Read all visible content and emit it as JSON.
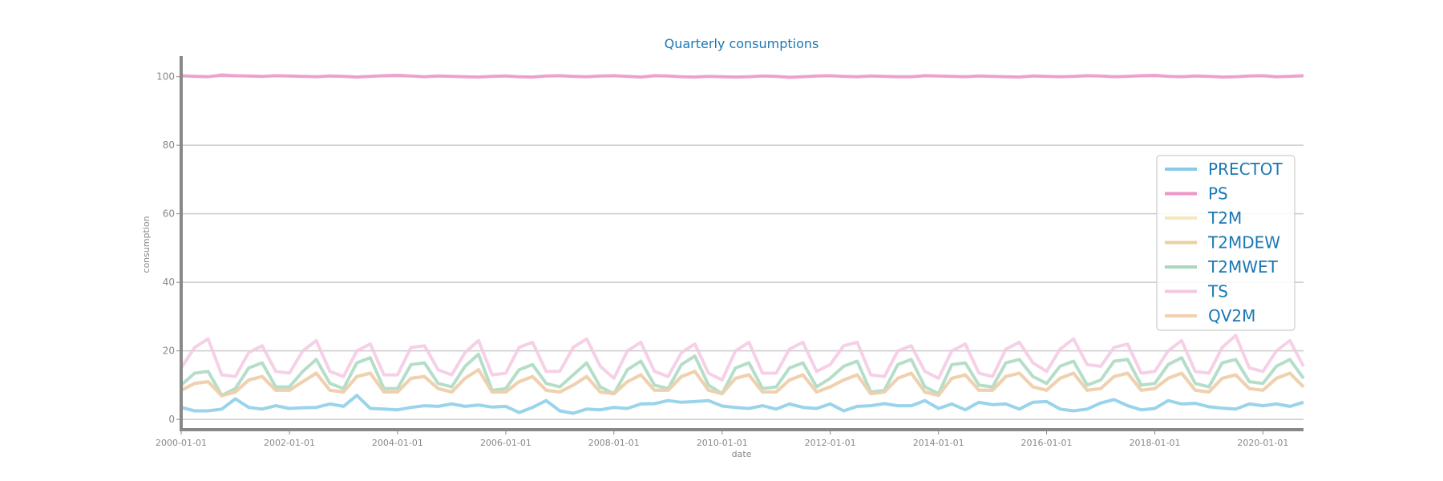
{
  "chart_data": {
    "type": "line",
    "title": "Quarterly consumptions",
    "xlabel": "date",
    "ylabel": "consumption",
    "ylim": [
      -3,
      106
    ],
    "xlim": [
      "2000-01-01",
      "2020-10-01"
    ],
    "grid": "horizontal",
    "legend_position": "right",
    "yticks": [
      "0",
      "20",
      "40",
      "60",
      "80",
      "100"
    ],
    "xticks": [
      "2000-01-01",
      "2002-01-01",
      "2004-01-01",
      "2006-01-01",
      "2008-01-01",
      "2010-01-01",
      "2012-01-01",
      "2014-01-01",
      "2016-01-01",
      "2018-01-01",
      "2020-01-01"
    ],
    "x": [
      "2000-01-01",
      "2000-04-01",
      "2000-07-01",
      "2000-10-01",
      "2001-01-01",
      "2001-04-01",
      "2001-07-01",
      "2001-10-01",
      "2002-01-01",
      "2002-04-01",
      "2002-07-01",
      "2002-10-01",
      "2003-01-01",
      "2003-04-01",
      "2003-07-01",
      "2003-10-01",
      "2004-01-01",
      "2004-04-01",
      "2004-07-01",
      "2004-10-01",
      "2005-01-01",
      "2005-04-01",
      "2005-07-01",
      "2005-10-01",
      "2006-01-01",
      "2006-04-01",
      "2006-07-01",
      "2006-10-01",
      "2007-01-01",
      "2007-04-01",
      "2007-07-01",
      "2007-10-01",
      "2008-01-01",
      "2008-04-01",
      "2008-07-01",
      "2008-10-01",
      "2009-01-01",
      "2009-04-01",
      "2009-07-01",
      "2009-10-01",
      "2010-01-01",
      "2010-04-01",
      "2010-07-01",
      "2010-10-01",
      "2011-01-01",
      "2011-04-01",
      "2011-07-01",
      "2011-10-01",
      "2012-01-01",
      "2012-04-01",
      "2012-07-01",
      "2012-10-01",
      "2013-01-01",
      "2013-04-01",
      "2013-07-01",
      "2013-10-01",
      "2014-01-01",
      "2014-04-01",
      "2014-07-01",
      "2014-10-01",
      "2015-01-01",
      "2015-04-01",
      "2015-07-01",
      "2015-10-01",
      "2016-01-01",
      "2016-04-01",
      "2016-07-01",
      "2016-10-01",
      "2017-01-01",
      "2017-04-01",
      "2017-07-01",
      "2017-10-01",
      "2018-01-01",
      "2018-04-01",
      "2018-07-01",
      "2018-10-01",
      "2019-01-01",
      "2019-04-01",
      "2019-07-01",
      "2019-10-01",
      "2020-01-01",
      "2020-04-01",
      "2020-07-01",
      "2020-10-01"
    ],
    "series": [
      {
        "name": "PRECTOT",
        "color": "#87cce6",
        "values": [
          3.5,
          2.5,
          2.5,
          3.0,
          6.0,
          3.5,
          3.0,
          4.0,
          3.2,
          3.4,
          3.5,
          4.5,
          3.8,
          7.0,
          3.2,
          3.0,
          2.8,
          3.5,
          4.0,
          3.8,
          4.5,
          3.8,
          4.2,
          3.6,
          3.8,
          2.0,
          3.5,
          5.5,
          2.5,
          1.8,
          3.0,
          2.8,
          3.5,
          3.2,
          4.5,
          4.6,
          5.5,
          5.0,
          5.2,
          5.5,
          3.9,
          3.5,
          3.2,
          4.0,
          3.0,
          4.5,
          3.5,
          3.2,
          4.5,
          2.5,
          3.8,
          4.0,
          4.6,
          4.0,
          4.0,
          5.5,
          3.2,
          4.5,
          2.8,
          5.0,
          4.3,
          4.5,
          3.0,
          5.0,
          5.2,
          3.0,
          2.5,
          3.0,
          4.8,
          5.8,
          4.0,
          2.8,
          3.2,
          5.5,
          4.5,
          4.7,
          3.7,
          3.3,
          3.0,
          4.5,
          4.0,
          4.5,
          3.8,
          5.0
        ]
      },
      {
        "name": "PS",
        "color": "#ec96c8",
        "values": [
          100.3,
          100.1,
          100.0,
          100.5,
          100.3,
          100.2,
          100.1,
          100.3,
          100.2,
          100.1,
          100.0,
          100.2,
          100.1,
          99.9,
          100.1,
          100.3,
          100.4,
          100.2,
          100.0,
          100.2,
          100.1,
          100.0,
          99.9,
          100.1,
          100.2,
          100.0,
          99.9,
          100.2,
          100.3,
          100.1,
          100.0,
          100.2,
          100.3,
          100.1,
          99.9,
          100.3,
          100.2,
          100.0,
          99.9,
          100.1,
          100.0,
          99.9,
          100.0,
          100.2,
          100.1,
          99.8,
          100.0,
          100.2,
          100.3,
          100.1,
          100.0,
          100.2,
          100.1,
          100.0,
          100.0,
          100.3,
          100.2,
          100.1,
          100.0,
          100.2,
          100.1,
          100.0,
          99.9,
          100.2,
          100.1,
          100.0,
          100.1,
          100.3,
          100.2,
          100.0,
          100.1,
          100.3,
          100.4,
          100.1,
          100.0,
          100.2,
          100.1,
          99.9,
          100.0,
          100.2,
          100.3,
          100.0,
          100.1,
          100.3
        ]
      },
      {
        "name": "T2M",
        "color": "#f6e8bb",
        "values": [
          8.5,
          10.5,
          11.0,
          6.8,
          8.0,
          11.5,
          12.5,
          8.5,
          8.5,
          11.0,
          13.5,
          8.5,
          8.0,
          12.5,
          13.5,
          8.0,
          8.0,
          12.0,
          12.5,
          9.0,
          8.0,
          12.0,
          14.5,
          8.0,
          8.0,
          11.0,
          12.5,
          8.5,
          8.0,
          10.0,
          12.5,
          8.0,
          7.5,
          11.0,
          13.0,
          8.5,
          8.5,
          12.5,
          14.0,
          8.5,
          7.5,
          12.0,
          13.0,
          8.0,
          8.0,
          11.5,
          13.0,
          8.0,
          9.5,
          11.5,
          13.0,
          7.5,
          8.0,
          12.0,
          13.5,
          8.0,
          7.0,
          12.0,
          13.0,
          8.5,
          8.5,
          12.5,
          13.5,
          9.5,
          8.5,
          12.0,
          13.5,
          8.5,
          9.0,
          12.5,
          13.5,
          8.5,
          9.0,
          12.0,
          13.5,
          8.5,
          8.0,
          12.0,
          13.0,
          9.0,
          8.5,
          12.0,
          13.5,
          9.5
        ]
      },
      {
        "name": "T2MDEW",
        "color": "#e8d0a0",
        "values": [
          8.5,
          10.5,
          11.0,
          7.0,
          8.0,
          11.5,
          12.5,
          8.5,
          8.5,
          11.0,
          13.5,
          8.5,
          8.0,
          12.5,
          13.5,
          8.0,
          8.0,
          12.0,
          12.5,
          9.0,
          8.0,
          12.0,
          14.5,
          8.0,
          8.0,
          11.0,
          12.5,
          8.5,
          8.0,
          10.0,
          12.5,
          8.0,
          7.5,
          11.0,
          13.0,
          8.5,
          8.5,
          12.5,
          14.0,
          8.5,
          7.5,
          12.0,
          13.0,
          8.0,
          8.0,
          11.5,
          13.0,
          8.0,
          9.5,
          11.5,
          13.0,
          7.5,
          8.0,
          12.0,
          13.5,
          8.0,
          7.0,
          12.0,
          13.0,
          8.5,
          8.5,
          12.5,
          13.5,
          9.5,
          8.5,
          12.0,
          13.5,
          8.5,
          9.0,
          12.5,
          13.5,
          8.5,
          9.0,
          12.0,
          13.5,
          8.5,
          8.0,
          12.0,
          13.0,
          9.0,
          8.5,
          12.0,
          13.5,
          9.5
        ]
      },
      {
        "name": "T2MWET",
        "color": "#a8d8c0",
        "values": [
          10.0,
          13.5,
          14.0,
          7.0,
          9.0,
          15.0,
          16.5,
          9.5,
          9.5,
          14.0,
          17.5,
          10.5,
          9.0,
          16.5,
          18.0,
          9.0,
          9.0,
          16.0,
          16.5,
          10.5,
          9.5,
          15.5,
          19.0,
          8.5,
          9.0,
          14.5,
          16.0,
          10.5,
          9.5,
          13.0,
          16.5,
          9.5,
          7.5,
          14.5,
          17.0,
          10.0,
          9.0,
          16.0,
          18.5,
          10.0,
          7.5,
          15.0,
          16.5,
          9.0,
          9.5,
          15.0,
          16.5,
          9.5,
          12.0,
          15.5,
          17.0,
          8.0,
          8.5,
          16.0,
          17.5,
          9.5,
          7.5,
          16.0,
          16.5,
          10.0,
          9.5,
          16.5,
          17.5,
          12.5,
          10.5,
          15.5,
          17.0,
          10.0,
          11.5,
          17.0,
          17.5,
          10.0,
          10.5,
          16.0,
          18.0,
          10.5,
          9.5,
          16.5,
          17.5,
          11.0,
          10.5,
          15.5,
          17.5,
          12.0
        ]
      },
      {
        "name": "TS",
        "color": "#f4c8e2",
        "values": [
          15.0,
          21.0,
          23.5,
          13.0,
          12.5,
          19.5,
          21.5,
          14.0,
          13.5,
          20.0,
          23.0,
          14.0,
          12.5,
          20.0,
          22.0,
          13.0,
          13.0,
          21.0,
          21.5,
          14.5,
          13.0,
          19.5,
          23.0,
          13.0,
          13.5,
          21.0,
          22.5,
          14.0,
          14.0,
          21.0,
          23.5,
          15.5,
          12.0,
          20.0,
          22.5,
          14.0,
          12.5,
          19.5,
          22.0,
          13.5,
          11.5,
          20.0,
          22.5,
          13.5,
          13.5,
          20.5,
          22.5,
          14.0,
          16.0,
          21.5,
          22.5,
          13.0,
          12.5,
          20.0,
          21.5,
          14.0,
          12.0,
          20.0,
          22.0,
          13.5,
          12.5,
          20.5,
          22.5,
          16.5,
          14.0,
          20.5,
          23.5,
          16.0,
          15.5,
          21.0,
          22.0,
          13.5,
          14.0,
          20.0,
          23.0,
          14.0,
          13.5,
          21.0,
          24.5,
          15.0,
          14.0,
          20.0,
          23.0,
          15.5
        ]
      },
      {
        "name": "QV2M",
        "color": "#f0d0b0",
        "values": [
          8.5,
          10.5,
          11.0,
          7.0,
          8.0,
          11.5,
          12.5,
          8.5,
          8.5,
          11.0,
          13.5,
          8.5,
          8.0,
          12.5,
          13.5,
          8.0,
          8.0,
          12.0,
          12.5,
          9.0,
          8.0,
          12.0,
          14.5,
          8.0,
          8.0,
          11.0,
          12.5,
          8.5,
          8.0,
          10.0,
          12.5,
          8.0,
          7.5,
          11.0,
          13.0,
          8.5,
          8.5,
          12.5,
          14.0,
          8.5,
          7.5,
          12.0,
          13.0,
          8.0,
          8.0,
          11.5,
          13.0,
          8.0,
          9.5,
          11.5,
          13.0,
          7.5,
          8.0,
          12.0,
          13.5,
          8.0,
          7.0,
          12.0,
          13.0,
          8.5,
          8.5,
          12.5,
          13.5,
          9.5,
          8.5,
          12.0,
          13.5,
          8.5,
          9.0,
          12.5,
          13.5,
          8.5,
          9.0,
          12.0,
          13.5,
          8.5,
          8.0,
          12.0,
          13.0,
          9.0,
          8.5,
          12.0,
          13.5,
          9.5
        ]
      }
    ]
  }
}
